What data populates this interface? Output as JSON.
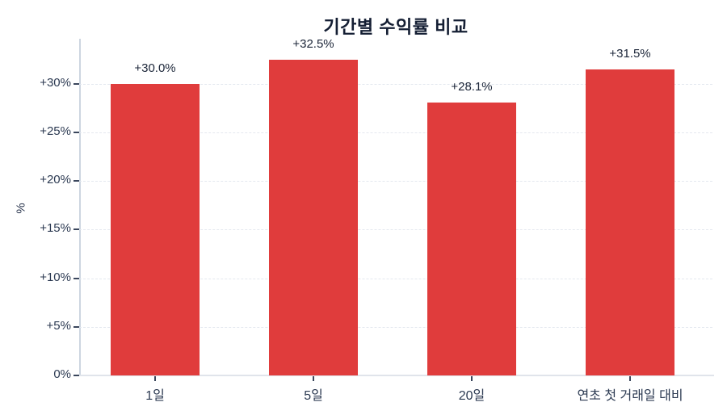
{
  "chart_data": {
    "type": "bar",
    "title": "기간별 수익률 비교",
    "xlabel": "",
    "ylabel": "%",
    "categories": [
      "1일",
      "5일",
      "20일",
      "연초 첫 거래일 대비"
    ],
    "values": [
      30.0,
      32.5,
      28.1,
      31.5
    ],
    "value_labels": [
      "+30.0%",
      "+32.5%",
      "+28.1%",
      "+31.5%"
    ],
    "y_ticks": [
      0,
      5,
      10,
      15,
      20,
      25,
      30
    ],
    "y_tick_labels": [
      "0%",
      "+5%",
      "+10%",
      "+15%",
      "+20%",
      "+25%",
      "+30%"
    ],
    "ylim": [
      0,
      34.65
    ],
    "grid": "horizontal-dashed",
    "legend_position": "none",
    "series_color": "#e03c3c"
  },
  "colors": {
    "bar": "#e03c3c",
    "title_text": "#141e33",
    "tick_text": "#2c3a52",
    "value_text": "#1b2538",
    "grid_line": "#e4e8ef",
    "spine": "#cdd6e0",
    "axis_line": "#e0e4eb",
    "background": "#ffffff"
  }
}
